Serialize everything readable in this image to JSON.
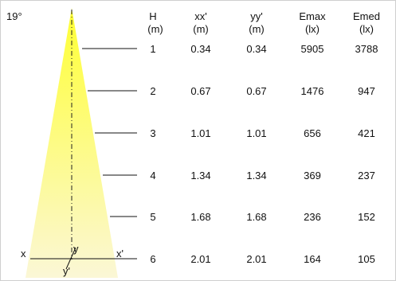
{
  "beam": {
    "angle_label": "19°",
    "colors": {
      "beam_top": "#ffff33",
      "beam_bottom": "#fbf7d6",
      "line": "#111111",
      "frame": "#cfcfcf"
    }
  },
  "columns": [
    {
      "key": "h",
      "line1": "H",
      "line2": "(m)"
    },
    {
      "key": "xx",
      "line1": "xx'",
      "line2": "(m)"
    },
    {
      "key": "yy",
      "line1": "yy'",
      "line2": "(m)"
    },
    {
      "key": "emax",
      "line1": "Emax",
      "line2": "(lx)"
    },
    {
      "key": "emed",
      "line1": "Emed",
      "line2": "(lx)"
    }
  ],
  "rows": [
    {
      "h": "1",
      "xx": "0.34",
      "yy": "0.34",
      "emax": "5905",
      "emed": "3788"
    },
    {
      "h": "2",
      "xx": "0.67",
      "yy": "0.67",
      "emax": "1476",
      "emed": "947"
    },
    {
      "h": "3",
      "xx": "1.01",
      "yy": "1.01",
      "emax": "656",
      "emed": "421"
    },
    {
      "h": "4",
      "xx": "1.34",
      "yy": "1.34",
      "emax": "369",
      "emed": "237"
    },
    {
      "h": "5",
      "xx": "1.68",
      "yy": "1.68",
      "emax": "236",
      "emed": "152"
    },
    {
      "h": "6",
      "xx": "2.01",
      "yy": "2.01",
      "emax": "164",
      "emed": "105"
    }
  ],
  "axis_labels": {
    "x": "x",
    "x_prime": "x'",
    "y": "y",
    "y_prime": "y'"
  }
}
